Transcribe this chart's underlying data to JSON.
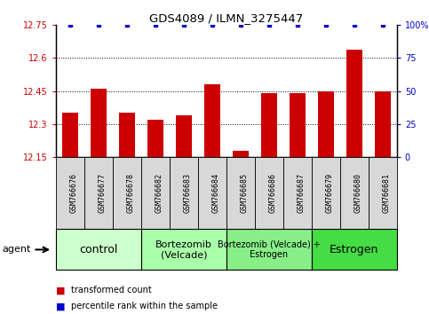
{
  "title": "GDS4089 / ILMN_3275447",
  "samples": [
    "GSM766676",
    "GSM766677",
    "GSM766678",
    "GSM766682",
    "GSM766683",
    "GSM766684",
    "GSM766685",
    "GSM766686",
    "GSM766687",
    "GSM766679",
    "GSM766680",
    "GSM766681"
  ],
  "red_values": [
    12.35,
    12.46,
    12.35,
    12.32,
    12.34,
    12.48,
    12.18,
    12.44,
    12.44,
    12.45,
    12.64,
    12.45
  ],
  "blue_values": [
    100,
    100,
    100,
    100,
    100,
    100,
    100,
    100,
    100,
    100,
    100,
    100
  ],
  "ylim_left": [
    12.15,
    12.75
  ],
  "ylim_right": [
    0,
    100
  ],
  "yticks_left": [
    12.15,
    12.3,
    12.45,
    12.6,
    12.75
  ],
  "yticks_right": [
    0,
    25,
    50,
    75,
    100
  ],
  "ytick_labels_left": [
    "12.15",
    "12.3",
    "12.45",
    "12.6",
    "12.75"
  ],
  "ytick_labels_right": [
    "0",
    "25",
    "50",
    "75",
    "100%"
  ],
  "grid_values": [
    12.3,
    12.45,
    12.6
  ],
  "bar_color": "#cc0000",
  "dot_color": "#0000cc",
  "agent_groups": [
    {
      "label": "control",
      "start": 0,
      "end": 3,
      "color": "#ccffcc"
    },
    {
      "label": "Bortezomib\n(Velcade)",
      "start": 3,
      "end": 6,
      "color": "#aaffaa"
    },
    {
      "label": "Bortezomib (Velcade) +\nEstrogen",
      "start": 6,
      "end": 9,
      "color": "#88ee88"
    },
    {
      "label": "Estrogen",
      "start": 9,
      "end": 12,
      "color": "#44dd44"
    }
  ],
  "legend_red": "transformed count",
  "legend_blue": "percentile rank within the sample",
  "agent_label": "agent",
  "bar_width": 0.55,
  "sample_box_color": "#d8d8d8"
}
